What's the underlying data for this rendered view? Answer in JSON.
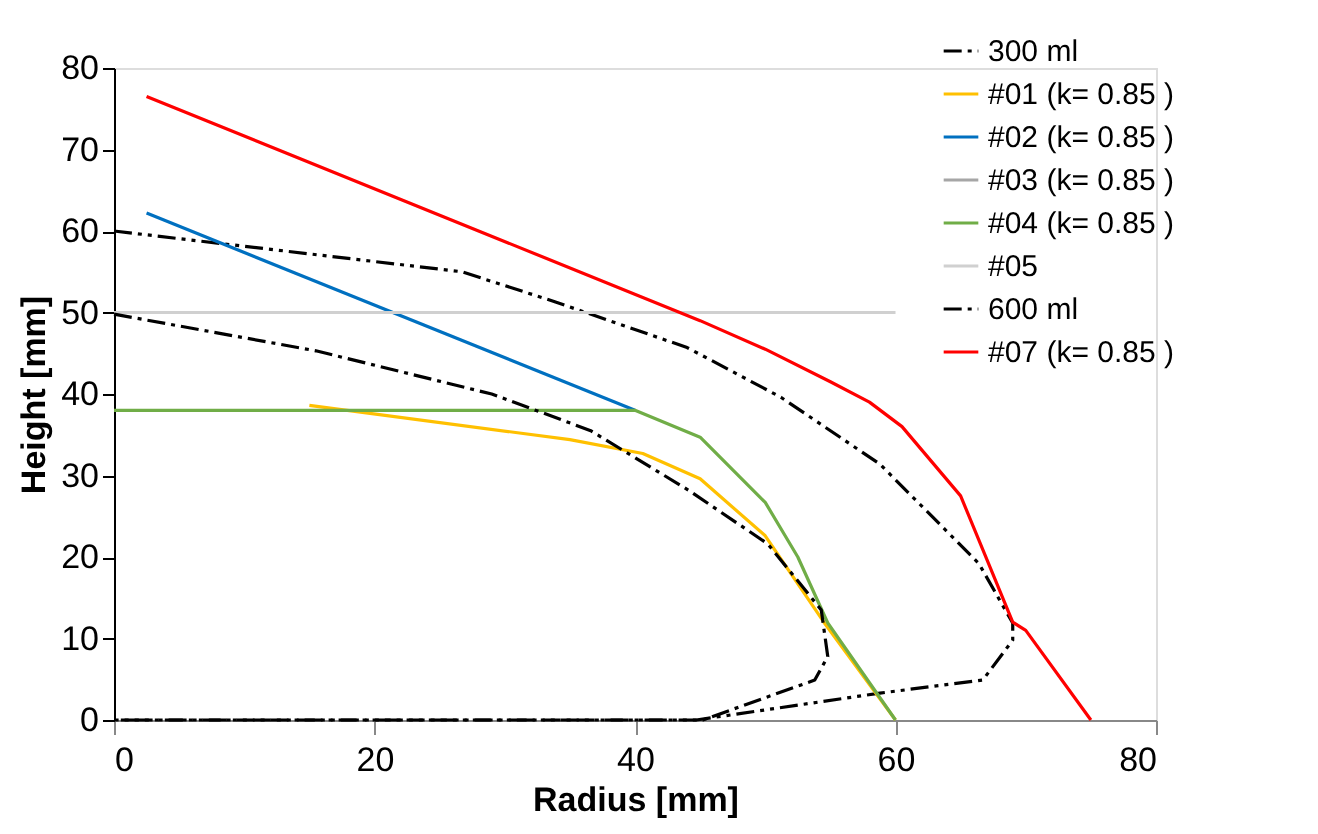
{
  "chart_data": {
    "type": "line",
    "xlabel": "Radius [mm]",
    "ylabel": "Height [mm]",
    "xlim": [
      0,
      80
    ],
    "xticks": [
      0,
      20,
      40,
      60,
      80
    ],
    "ylim": [
      0,
      80
    ],
    "yticks": [
      0,
      10,
      20,
      30,
      40,
      50,
      60,
      70,
      80
    ],
    "grid": false,
    "legend": "top right",
    "marker": "none",
    "series": [
      {
        "name": "300 ml",
        "color": "#000000",
        "line_style": "dashdotdot",
        "x": [
          0,
          26.7,
          33.5,
          44,
          51.2,
          58.8,
          66.4,
          69,
          69,
          66.7,
          58.8,
          44.7,
          0
        ],
        "values": [
          60,
          55,
          51.5,
          45.7,
          39.6,
          31.4,
          19.2,
          11.9,
          9.8,
          4.9,
          3.3,
          0,
          0
        ]
      },
      {
        "name": "#01 (k= 0.85 )",
        "color": "#ffc000",
        "line_style": "solid",
        "x": [
          15,
          35,
          40.6,
          45,
          50,
          54.5,
          60
        ],
        "values": [
          38.6,
          34.4,
          32.7,
          29.6,
          22.6,
          12,
          0
        ]
      },
      {
        "name": "#02 (k= 0.85 )",
        "color": "#0070c0",
        "line_style": "solid",
        "x": [
          2.5,
          40
        ],
        "values": [
          62.2,
          38
        ]
      },
      {
        "name": "#03 (k= 0.85 )",
        "color": "#a6a6a6",
        "line_style": "solid"
      },
      {
        "name": "#04 (k= 0.85 )",
        "color": "#70ad47",
        "line_style": "solid",
        "x": [
          0,
          40,
          45,
          50,
          52.5,
          54.8,
          60
        ],
        "values": [
          38,
          38,
          34.7,
          26.7,
          20,
          11.9,
          0
        ]
      },
      {
        "name": "#05",
        "color": "#d0d0d0",
        "line_style": "solid",
        "x": [
          0,
          60
        ],
        "values": [
          50,
          50
        ]
      },
      {
        "name": "600 ml",
        "color": "#000000",
        "line_style": "dashdot",
        "x": [
          0,
          15.5,
          29,
          36.6,
          44.1,
          50.2,
          54.3,
          54.8,
          53.8,
          45.2,
          0
        ],
        "values": [
          49.8,
          45.3,
          40,
          35.5,
          28.2,
          21.6,
          13.5,
          7.8,
          4.9,
          0,
          0
        ]
      },
      {
        "name": "#07 (k= 0.85 )",
        "color": "#ff0000",
        "line_style": "solid",
        "x": [
          2.5,
          45,
          50,
          55,
          58,
          60.5,
          65,
          69,
          70,
          75
        ],
        "values": [
          76.5,
          49,
          45.5,
          41.5,
          39,
          36,
          27.5,
          12,
          11,
          0
        ]
      }
    ]
  }
}
